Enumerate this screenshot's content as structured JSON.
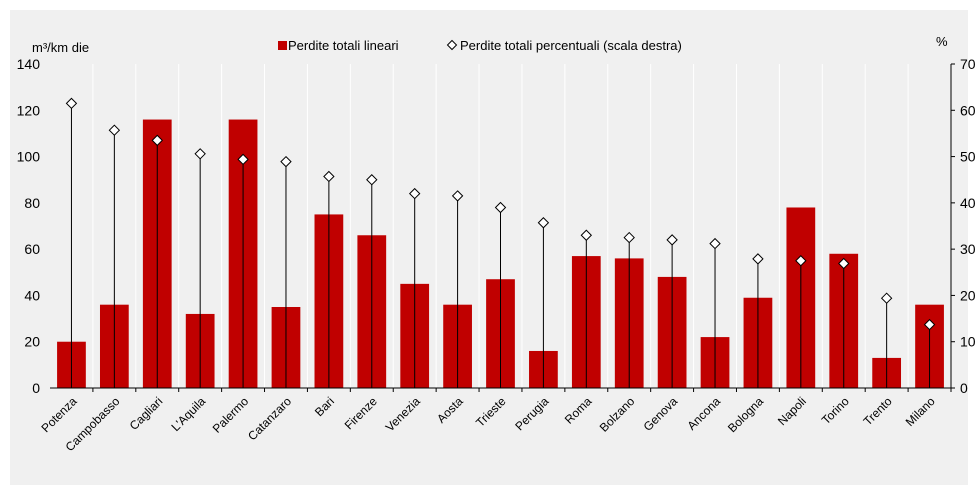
{
  "chart_data": {
    "type": "bar",
    "title": "",
    "ylabel": "m³/km die",
    "y2label": "%",
    "ylim": [
      0,
      140
    ],
    "y2lim": [
      0,
      70
    ],
    "yticks": [
      0,
      20,
      40,
      60,
      80,
      100,
      120,
      140
    ],
    "y2ticks": [
      0,
      10,
      20,
      30,
      40,
      50,
      60,
      70
    ],
    "legend_position": "top-center",
    "grid": "vertical",
    "categories": [
      "Potenza",
      "Campobasso",
      "Cagliari",
      "L'Aquila",
      "Palermo",
      "Catanzaro",
      "Bari",
      "Firenze",
      "Venezia",
      "Aosta",
      "Trieste",
      "Perugia",
      "Roma",
      "Bolzano",
      "Genova",
      "Ancona",
      "Bologna",
      "Napoli",
      "Torino",
      "Trento",
      "Milano"
    ],
    "series": [
      {
        "name": "Perdite totali lineari",
        "axis": "left",
        "type": "bar",
        "color": "#c00000",
        "values": [
          20,
          36,
          116,
          32,
          116,
          35,
          75,
          66,
          45,
          36,
          47,
          16,
          57,
          56,
          48,
          22,
          39,
          78,
          58,
          13,
          36
        ]
      },
      {
        "name": "Perdite totali percentuali (scala destra)",
        "axis": "right",
        "type": "scatter",
        "marker": "diamond",
        "color": "#000000",
        "values": [
          61.5,
          55.7,
          53.5,
          50.6,
          49.4,
          48.9,
          45.7,
          45.0,
          42.0,
          41.5,
          39.0,
          35.7,
          33.0,
          32.5,
          32.0,
          31.2,
          27.9,
          27.5,
          26.9,
          19.4,
          13.7
        ]
      }
    ]
  }
}
